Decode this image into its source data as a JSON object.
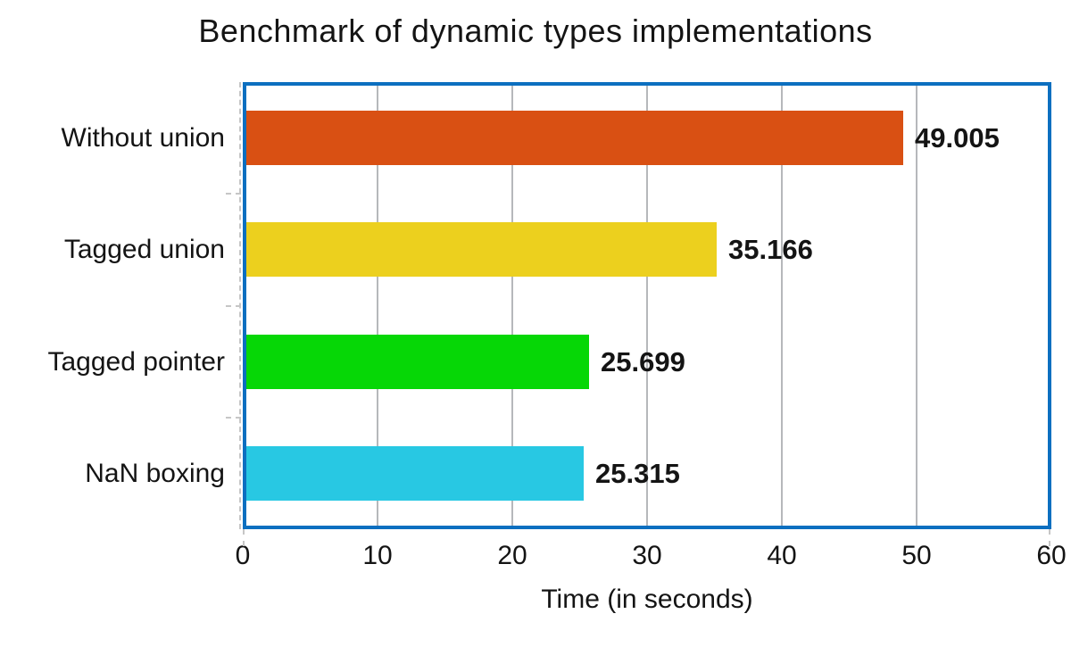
{
  "title": "Benchmark of dynamic types implementations",
  "chart_data": {
    "type": "bar",
    "orientation": "horizontal",
    "title": "Benchmark of dynamic types implementations",
    "categories": [
      "Without union",
      "Tagged union",
      "Tagged pointer",
      "NaN boxing"
    ],
    "values": [
      49.005,
      35.166,
      25.699,
      25.315
    ],
    "value_labels": [
      "49.005",
      "35.166",
      "25.699",
      "25.315"
    ],
    "bar_colors": [
      "#d95013",
      "#ecd01e",
      "#06d706",
      "#28c8e3"
    ],
    "xlabel": "Time (in seconds)",
    "ylabel": "",
    "x_ticks": [
      "0",
      "10",
      "20",
      "30",
      "40",
      "50",
      "60"
    ],
    "xlim": [
      0,
      60
    ],
    "grid": "vertical-gridlines-at-major-ticks",
    "legend": "none",
    "colors": {
      "plot_border": "#0c6fc0",
      "gridline": "#b6b8bb",
      "minor_tick": "#c6c6c6",
      "text": "#141414",
      "background": "#ffffff"
    }
  }
}
